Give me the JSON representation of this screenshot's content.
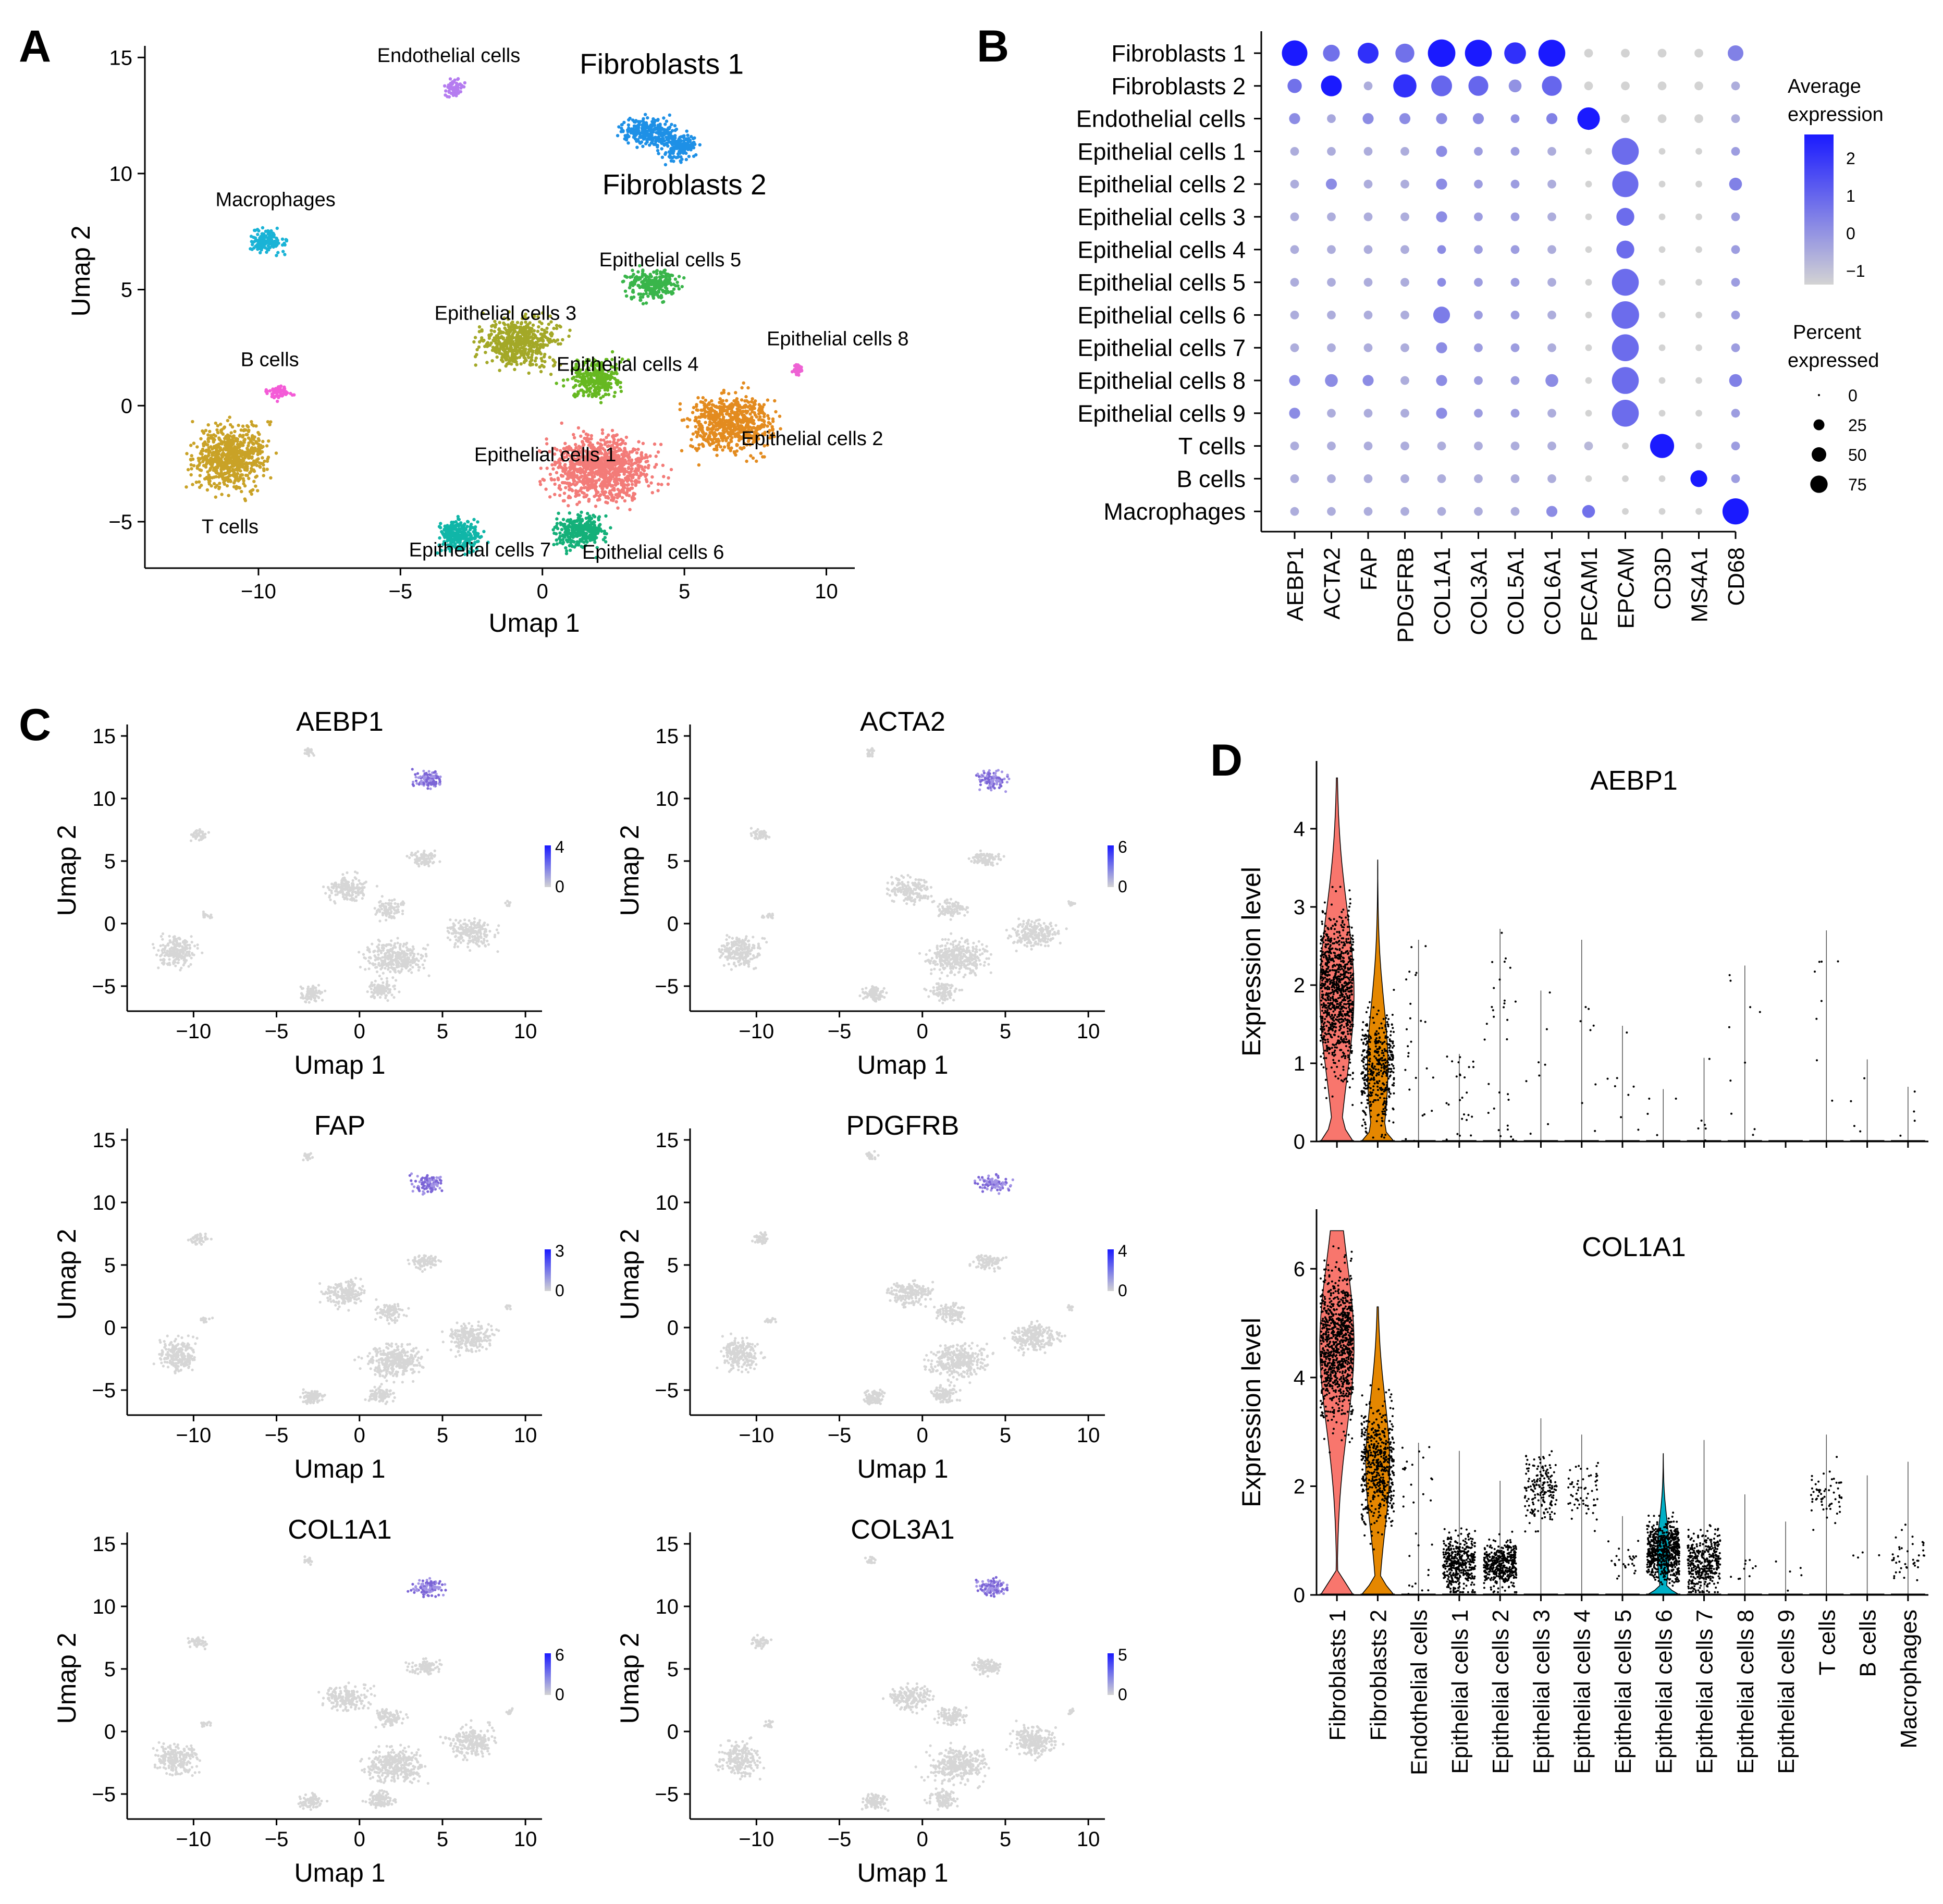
{
  "panels": {
    "A": "A",
    "B": "B",
    "C": "C",
    "D": "D"
  },
  "colors": {
    "clusters": {
      "Fibroblasts 1": "#1e90e6",
      "Fibroblasts 2": "#1e90e6",
      "Endothelial cells": "#b57cf0",
      "Macrophages": "#19b3d6",
      "B cells": "#f45bd7",
      "T cells": "#c9a227",
      "Epithelial cells 1": "#f37b78",
      "Epithelial cells 2": "#e38b1f",
      "Epithelial cells 3": "#a3a827",
      "Epithelial cells 4": "#66b821",
      "Epithelial cells 5": "#39b54a",
      "Epithelial cells 6": "#14b079",
      "Epithelial cells 7": "#10b6a8",
      "Epithelial cells 8": "#ee62d4"
    },
    "expr_low": "#d3d3d3",
    "expr_high": "#1a1aff",
    "violin_fib1": "#f8766d",
    "violin_fib2": "#e58700",
    "violin_epi6": "#00b0c6"
  },
  "chart_data": [
    {
      "panel": "A",
      "type": "scatter",
      "xlabel": "Umap 1",
      "ylabel": "Umap 2",
      "xlim": [
        -14,
        11
      ],
      "ylim": [
        -7,
        15.5
      ],
      "xticks": [
        -10,
        -5,
        0,
        5,
        10
      ],
      "xtick_labels": [
        "−10",
        "−5",
        "0",
        "5",
        "10"
      ],
      "yticks": [
        -5,
        0,
        5,
        10,
        15
      ],
      "ytick_labels": [
        "−5",
        "0",
        "5",
        "10",
        "15"
      ],
      "clusters": [
        {
          "name": "Endothelial cells",
          "label": "Endothelial cells",
          "label_at": [
            -3.3,
            14.8
          ],
          "cx": -3.1,
          "cy": 13.7,
          "rx": 0.6,
          "ry": 0.7,
          "n": 60
        },
        {
          "name": "Fibroblasts 1",
          "label": "Fibroblasts 1",
          "label_at": [
            4.2,
            14.3
          ],
          "cx": 3.7,
          "cy": 11.8,
          "rx": 1.6,
          "ry": 1.0,
          "n": 260
        },
        {
          "name": "Fibroblasts 2",
          "label": "Fibroblasts 2",
          "label_at": [
            5.0,
            9.1
          ],
          "cx": 4.8,
          "cy": 11.1,
          "rx": 1.1,
          "ry": 1.0,
          "n": 160
        },
        {
          "name": "Macrophages",
          "label": "Macrophages",
          "label_at": [
            -9.4,
            8.6
          ],
          "cx": -9.7,
          "cy": 7.1,
          "rx": 1.0,
          "ry": 0.9,
          "n": 150
        },
        {
          "name": "B cells",
          "label": "B cells",
          "label_at": [
            -9.6,
            1.7
          ],
          "cx": -9.3,
          "cy": 0.6,
          "rx": 0.7,
          "ry": 0.5,
          "n": 60
        },
        {
          "name": "T cells",
          "label": "T cells",
          "label_at": [
            -11.0,
            -5.5
          ],
          "cx": -11.0,
          "cy": -2.2,
          "rx": 2.1,
          "ry": 2.3,
          "n": 700
        },
        {
          "name": "Epithelial cells 3",
          "label": "Epithelial cells 3",
          "label_at": [
            -1.3,
            3.7
          ],
          "cx": -0.8,
          "cy": 2.7,
          "rx": 2.3,
          "ry": 1.8,
          "n": 520
        },
        {
          "name": "Epithelial cells 5",
          "label": "Epithelial cells 5",
          "label_at": [
            4.5,
            6.0
          ],
          "cx": 3.9,
          "cy": 5.2,
          "rx": 1.6,
          "ry": 1.1,
          "n": 260
        },
        {
          "name": "Epithelial cells 4",
          "label": "Epithelial cells 4",
          "label_at": [
            3.0,
            1.5
          ],
          "cx": 1.8,
          "cy": 1.2,
          "rx": 1.6,
          "ry": 1.4,
          "n": 300
        },
        {
          "name": "Epithelial cells 8",
          "label": "Epithelial cells 8",
          "label_at": [
            10.4,
            2.6
          ],
          "cx": 9.0,
          "cy": 1.6,
          "rx": 0.3,
          "ry": 0.45,
          "n": 30
        },
        {
          "name": "Epithelial cells 2",
          "label": "Epithelial cells 2",
          "label_at": [
            9.5,
            -1.7
          ],
          "cx": 6.7,
          "cy": -0.8,
          "rx": 2.5,
          "ry": 2.1,
          "n": 650
        },
        {
          "name": "Epithelial cells 1",
          "label": "Epithelial cells 1",
          "label_at": [
            0.1,
            -2.4
          ],
          "cx": 2.1,
          "cy": -2.7,
          "rx": 3.0,
          "ry": 2.4,
          "n": 1000
        },
        {
          "name": "Epithelial cells 6",
          "label": "Epithelial cells 6",
          "label_at": [
            3.9,
            -6.6
          ],
          "cx": 1.3,
          "cy": -5.4,
          "rx": 1.5,
          "ry": 1.3,
          "n": 300
        },
        {
          "name": "Epithelial cells 7",
          "label": "Epithelial cells 7",
          "label_at": [
            -2.2,
            -6.5
          ],
          "cx": -2.9,
          "cy": -5.6,
          "rx": 1.3,
          "ry": 1.1,
          "n": 260
        }
      ]
    },
    {
      "panel": "B",
      "type": "dot",
      "rows": [
        "Fibroblasts 1",
        "Fibroblasts 2",
        "Endothelial cells",
        "Epithelial cells 1",
        "Epithelial cells 2",
        "Epithelial cells 3",
        "Epithelial cells 4",
        "Epithelial cells 5",
        "Epithelial cells 6",
        "Epithelial cells 7",
        "Epithelial cells 8",
        "Epithelial cells 9",
        "T cells",
        "B cells",
        "Macrophages"
      ],
      "genes": [
        "AEBP1",
        "ACTA2",
        "FAP",
        "PDGFRB",
        "COL1A1",
        "COL3A1",
        "COL5A1",
        "COL6A1",
        "PECAM1",
        "EPCAM",
        "CD3D",
        "MS4A1",
        "CD68"
      ],
      "pct": [
        [
          80,
          30,
          50,
          40,
          95,
          90,
          55,
          90,
          5,
          5,
          5,
          5,
          25
        ],
        [
          20,
          50,
          5,
          65,
          50,
          45,
          15,
          45,
          5,
          5,
          5,
          5,
          5
        ],
        [
          10,
          5,
          10,
          10,
          10,
          10,
          5,
          10,
          60,
          5,
          5,
          5,
          5
        ],
        [
          5,
          5,
          5,
          5,
          10,
          5,
          5,
          5,
          2,
          90,
          2,
          2,
          5
        ],
        [
          5,
          10,
          5,
          5,
          10,
          5,
          5,
          5,
          2,
          85,
          2,
          2,
          15
        ],
        [
          5,
          5,
          5,
          5,
          10,
          5,
          5,
          5,
          2,
          35,
          2,
          2,
          5
        ],
        [
          5,
          5,
          5,
          5,
          5,
          5,
          5,
          5,
          2,
          35,
          2,
          2,
          5
        ],
        [
          5,
          5,
          5,
          5,
          5,
          5,
          5,
          5,
          2,
          90,
          2,
          2,
          5
        ],
        [
          5,
          5,
          5,
          5,
          30,
          5,
          5,
          5,
          2,
          95,
          2,
          2,
          5
        ],
        [
          5,
          5,
          5,
          5,
          10,
          5,
          5,
          5,
          2,
          90,
          2,
          2,
          5
        ],
        [
          10,
          15,
          10,
          5,
          10,
          5,
          5,
          15,
          2,
          90,
          2,
          2,
          15
        ],
        [
          10,
          5,
          5,
          5,
          10,
          5,
          5,
          5,
          2,
          90,
          2,
          2,
          5
        ],
        [
          5,
          5,
          5,
          5,
          5,
          5,
          5,
          5,
          5,
          2,
          70,
          2,
          5
        ],
        [
          5,
          5,
          5,
          5,
          5,
          5,
          5,
          5,
          2,
          2,
          2,
          30,
          5
        ],
        [
          5,
          5,
          5,
          5,
          5,
          5,
          5,
          10,
          15,
          2,
          2,
          2,
          85
        ]
      ],
      "avg": [
        [
          2.4,
          0.8,
          2.0,
          0.8,
          2.4,
          2.4,
          2.0,
          2.4,
          -1,
          -1,
          -1,
          -1,
          0.5
        ],
        [
          0.8,
          2.4,
          -0.3,
          2.0,
          1.0,
          1.0,
          0.2,
          1.0,
          -1,
          -1,
          -1,
          -1,
          -0.3
        ],
        [
          0.3,
          -0.2,
          0.3,
          0.3,
          0.3,
          0.3,
          0.2,
          0.5,
          2.4,
          -1,
          -1,
          -1,
          -0.3
        ],
        [
          -0.3,
          -0.3,
          -0.3,
          -0.3,
          0.3,
          0,
          0,
          -0.3,
          -1,
          0.9,
          -1,
          -1,
          0
        ],
        [
          -0.3,
          0.3,
          -0.3,
          -0.3,
          0.3,
          0,
          0,
          -0.3,
          -1,
          0.9,
          -1,
          -1,
          0.5
        ],
        [
          -0.3,
          -0.3,
          -0.3,
          -0.3,
          0.3,
          0,
          0,
          -0.3,
          -1,
          0.9,
          -1,
          -1,
          0
        ],
        [
          -0.3,
          -0.3,
          -0.3,
          -0.3,
          0.3,
          0,
          0,
          -0.3,
          -1,
          0.9,
          -1,
          -1,
          0
        ],
        [
          -0.3,
          -0.3,
          -0.3,
          -0.3,
          0.3,
          0,
          0,
          -0.3,
          -1,
          0.9,
          -1,
          -1,
          0
        ],
        [
          -0.3,
          -0.3,
          -0.3,
          -0.3,
          0.6,
          0,
          0,
          -0.3,
          -1,
          0.9,
          -1,
          -1,
          0
        ],
        [
          -0.3,
          -0.3,
          -0.3,
          -0.3,
          0.3,
          0,
          0,
          -0.3,
          -1,
          0.9,
          -1,
          -1,
          0
        ],
        [
          0.3,
          0.3,
          0.3,
          -0.3,
          0.3,
          0,
          0,
          0.3,
          -1,
          0.9,
          -1,
          -1,
          0.5
        ],
        [
          0.3,
          -0.3,
          -0.3,
          -0.3,
          0.3,
          0,
          0,
          -0.3,
          -1,
          0.9,
          -1,
          -1,
          0
        ],
        [
          -0.3,
          -0.3,
          -0.3,
          -0.3,
          -0.3,
          -0.3,
          -0.3,
          -0.3,
          -0.5,
          -1,
          2.4,
          -1,
          0
        ],
        [
          -0.3,
          -0.3,
          -0.3,
          -0.3,
          -0.3,
          -0.3,
          -0.3,
          -0.3,
          -1,
          -1,
          -1,
          2.4,
          0
        ],
        [
          -0.3,
          -0.3,
          -0.3,
          -0.3,
          -0.3,
          -0.3,
          -0.3,
          0.3,
          0.8,
          -1,
          -1,
          -1,
          2.4
        ]
      ],
      "legend": {
        "color_title_1": "Average",
        "color_title_2": "expression",
        "color_ticks": [
          "2",
          "1",
          "0",
          "−1"
        ],
        "size_title_1": "Percent",
        "size_title_2": "expressed",
        "size_ticks": [
          "0",
          "25",
          "50",
          "75"
        ]
      }
    },
    {
      "panel": "C",
      "type": "scatter",
      "xlabel": "Umap 1",
      "ylabel": "Umap 2",
      "xtick_labels": [
        "−10",
        "−5",
        "0",
        "5",
        "10"
      ],
      "ytick_labels": [
        "−5",
        "0",
        "5",
        "10",
        "15"
      ],
      "features": [
        {
          "gene": "AEBP1",
          "max": "4",
          "min": "0"
        },
        {
          "gene": "ACTA2",
          "max": "6",
          "min": "0"
        },
        {
          "gene": "FAP",
          "max": "3",
          "min": "0"
        },
        {
          "gene": "PDGFRB",
          "max": "4",
          "min": "0"
        },
        {
          "gene": "COL1A1",
          "max": "6",
          "min": "0"
        },
        {
          "gene": "COL3A1",
          "max": "5",
          "min": "0"
        }
      ]
    },
    {
      "panel": "D",
      "type": "violin",
      "ylabel": "Expression level",
      "categories": [
        "Fibroblasts 1",
        "Fibroblasts 2",
        "Endothelial cells",
        "Epithelial cells 1",
        "Epithelial cells 2",
        "Epithelial cells 3",
        "Epithelial cells 4",
        "Epithelial cells 5",
        "Epithelial cells 6",
        "Epithelial cells 7",
        "Epithelial cells 8",
        "Epithelial cells 9",
        "T cells",
        "B cells",
        "Macrophages"
      ],
      "plots": [
        {
          "gene": "AEBP1",
          "ylim": [
            0,
            4.8
          ],
          "yticks": [
            0,
            1,
            2,
            3,
            4
          ],
          "ytick_labels": [
            "0",
            "1",
            "2",
            "3",
            "4"
          ],
          "max": [
            4.65,
            3.6,
            2.58,
            1.12,
            2.72,
            1.93,
            2.58,
            1.48,
            0.67,
            1.07,
            2.25,
            0,
            2.7,
            1.05,
            0.7
          ],
          "center": [
            1.9,
            0.95,
            0,
            0,
            0,
            0,
            0,
            0,
            0,
            0,
            0,
            0,
            0,
            0,
            0
          ],
          "width": [
            1.0,
            0.6,
            0,
            0,
            0,
            0,
            0,
            0,
            0,
            0,
            0,
            0,
            0,
            0,
            0
          ],
          "points": [
            900,
            420,
            25,
            25,
            30,
            8,
            8,
            8,
            4,
            6,
            10,
            0,
            8,
            4,
            4
          ]
        },
        {
          "gene": "COL1A1",
          "ylim": [
            0,
            7
          ],
          "yticks": [
            0,
            2,
            4,
            6
          ],
          "ytick_labels": [
            "0",
            "2",
            "4",
            "6"
          ],
          "max": [
            6.7,
            5.3,
            2.8,
            2.65,
            2.1,
            3.25,
            2.95,
            1.45,
            2.6,
            2.85,
            1.85,
            1.35,
            2.95,
            2.2,
            2.45
          ],
          "center": [
            4.6,
            2.4,
            0,
            0.6,
            0.55,
            1.9,
            1.9,
            0.6,
            0.8,
            0.6,
            0.5,
            0.4,
            1.85,
            0.6,
            0.7
          ],
          "width": [
            1.0,
            0.7,
            0,
            0,
            0,
            0,
            0,
            0,
            0.35,
            0,
            0,
            0,
            0,
            0,
            0
          ],
          "points": [
            900,
            500,
            30,
            420,
            420,
            180,
            60,
            25,
            650,
            380,
            10,
            5,
            60,
            4,
            40
          ]
        }
      ]
    }
  ]
}
